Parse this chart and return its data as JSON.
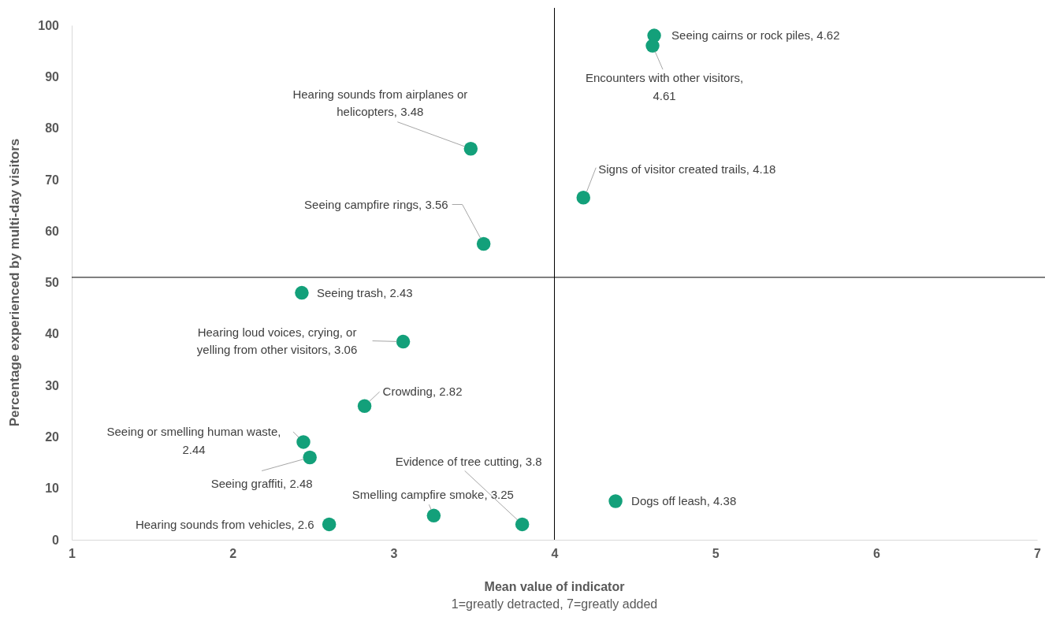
{
  "chart_data": {
    "type": "scatter",
    "xlabel": "Mean value of indicator",
    "ylabel": "Percentage experienced by multi-day visitors",
    "x": [
      4.62,
      4.61,
      3.48,
      4.18,
      3.56,
      2.43,
      3.06,
      2.82,
      2.44,
      2.48,
      4.38,
      3.25,
      3.8,
      2.6
    ],
    "series": [
      {
        "color": "#13a07a",
        "values": [
          98,
          96,
          76,
          66.5,
          57.5,
          48,
          38.5,
          26,
          19,
          16,
          7.5,
          4.7,
          3,
          3
        ]
      }
    ],
    "marker": "circle",
    "grid": false,
    "xlim": [
      1,
      7
    ],
    "xticks": [
      1,
      2,
      3,
      4,
      5,
      6,
      7
    ],
    "ylim": [
      0,
      100
    ],
    "yticks": [
      0,
      10,
      20,
      30,
      40,
      50,
      60,
      70,
      80,
      90,
      100
    ],
    "ref_lines": [
      {
        "axis": "x",
        "value": 4,
        "color": "#000000"
      },
      {
        "axis": "y",
        "value": 51,
        "color": "#000000"
      }
    ],
    "annotations": [
      {
        "text": "Seeing cairns or rock piles, 4.62",
        "x": 4.62,
        "y": 98
      },
      {
        "text": "Encounters with other visitors, 4.61",
        "x": 4.61,
        "y": 96
      },
      {
        "text": "Hearing sounds from airplanes or helicopters, 3.48",
        "x": 3.48,
        "y": 76
      },
      {
        "text": "Signs of visitor created trails, 4.18",
        "x": 4.18,
        "y": 66.5
      },
      {
        "text": "Seeing campfire rings, 3.56",
        "x": 3.56,
        "y": 57.5
      },
      {
        "text": "Seeing trash, 2.43",
        "x": 2.43,
        "y": 48
      },
      {
        "text": "Hearing loud voices, crying, or yelling from other visitors, 3.06",
        "x": 3.06,
        "y": 38.5
      },
      {
        "text": "Crowding, 2.82",
        "x": 2.82,
        "y": 26
      },
      {
        "text": "Seeing or smelling human waste, 2.44",
        "x": 2.44,
        "y": 19
      },
      {
        "text": "Seeing graffiti, 2.48",
        "x": 2.48,
        "y": 16
      },
      {
        "text": "Dogs off leash, 4.38",
        "x": 4.38,
        "y": 7.5
      },
      {
        "text": "Smelling campfire smoke, 3.25",
        "x": 3.25,
        "y": 4.7
      },
      {
        "text": "Evidence of tree cutting, 3.8",
        "x": 3.8,
        "y": 3
      },
      {
        "text": "Hearing sounds from vehicles, 2.6",
        "x": 2.6,
        "y": 3
      },
      "1=greatly detracted, 7=greatly added"
    ]
  }
}
